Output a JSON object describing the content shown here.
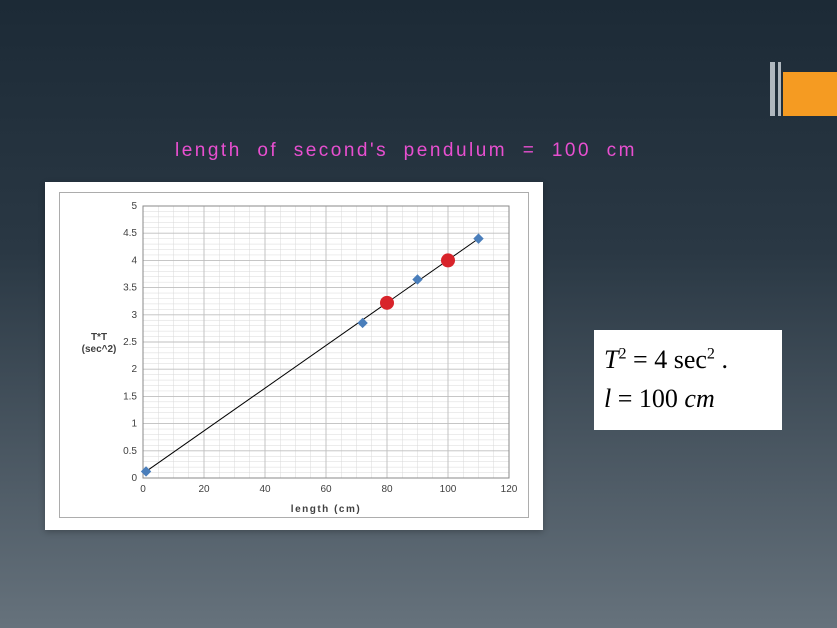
{
  "slide": {
    "background_gradient": [
      "#1c2a36",
      "#2a3844",
      "#66727c"
    ],
    "decoration": {
      "orange": "#f59b22",
      "bar": "#b0b8bf"
    }
  },
  "title": {
    "text": "length  of  second's  pendulum  =  100  cm",
    "color": "#e84fd0",
    "fontsize": 19
  },
  "chart": {
    "type": "scatter_with_line",
    "background_color": "#ffffff",
    "plot_border_color": "#8a8a8a",
    "grid_major_color": "#bfbfbf",
    "grid_minor_color": "#d9d9d9",
    "grid_major_width": 0.9,
    "grid_minor_width": 0.5,
    "xlabel": "length  (cm)",
    "ylabel": "T*T (sec^2)",
    "label_fontsize": 10,
    "label_color": "#404040",
    "tick_fontsize": 10,
    "tick_color": "#404040",
    "xlim": [
      0,
      120
    ],
    "x_major_step": 20,
    "x_minor_step": 5,
    "ylim": [
      0,
      5
    ],
    "y_major_step": 0.5,
    "y_minor_step": 0.1,
    "data_points": [
      {
        "x": 1,
        "y": 0.12
      },
      {
        "x": 72,
        "y": 2.85
      },
      {
        "x": 90,
        "y": 3.65
      },
      {
        "x": 110,
        "y": 4.4
      }
    ],
    "marker_color": "#4a7ebb",
    "marker_size": 4.5,
    "line_color": "#000000",
    "line_width": 1.0,
    "line_start": {
      "x": 1,
      "y": 0.12
    },
    "line_end": {
      "x": 110,
      "y": 4.4
    },
    "highlight_points": [
      {
        "x": 80,
        "y": 3.22
      },
      {
        "x": 100,
        "y": 4.0
      }
    ],
    "highlight_color": "#d8232a",
    "highlight_size": 7
  },
  "formula": {
    "T_var": "T",
    "T_exp": "2",
    "eq1_mid": " = 4  sec",
    "sec_exp": "2",
    "eq1_end": " .",
    "l_var": "l",
    "eq2_rest": " = 100 ",
    "unit": "cm"
  }
}
